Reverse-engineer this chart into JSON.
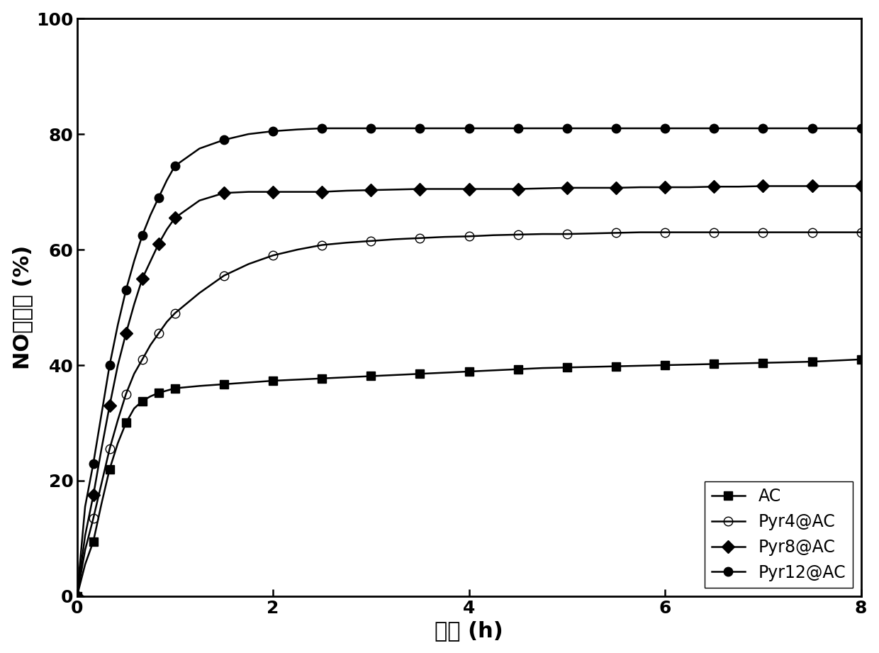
{
  "title": "",
  "xlabel": "时间 (h)",
  "ylabel": "NO转化率 (%)",
  "xlim": [
    0,
    8
  ],
  "ylim": [
    0,
    100
  ],
  "xticks": [
    0,
    2,
    4,
    6,
    8
  ],
  "yticks": [
    0,
    20,
    40,
    60,
    80,
    100
  ],
  "series": [
    {
      "label": "AC",
      "color": "#000000",
      "marker": "s",
      "marker_face": "#000000",
      "x": [
        0.0,
        0.083,
        0.167,
        0.25,
        0.333,
        0.417,
        0.5,
        0.583,
        0.667,
        0.75,
        0.833,
        0.917,
        1.0,
        1.25,
        1.5,
        1.75,
        2.0,
        2.25,
        2.5,
        2.75,
        3.0,
        3.25,
        3.5,
        3.75,
        4.0,
        4.25,
        4.5,
        4.75,
        5.0,
        5.25,
        5.5,
        5.75,
        6.0,
        6.25,
        6.5,
        6.75,
        7.0,
        7.25,
        7.5,
        7.75,
        8.0
      ],
      "y": [
        0.0,
        5.5,
        9.5,
        16.0,
        22.0,
        26.5,
        30.0,
        32.5,
        33.8,
        34.6,
        35.2,
        35.6,
        36.0,
        36.4,
        36.7,
        37.0,
        37.3,
        37.5,
        37.7,
        37.9,
        38.1,
        38.3,
        38.5,
        38.7,
        38.9,
        39.1,
        39.3,
        39.5,
        39.6,
        39.7,
        39.8,
        39.9,
        40.0,
        40.1,
        40.2,
        40.3,
        40.4,
        40.5,
        40.6,
        40.8,
        41.0
      ]
    },
    {
      "label": "Pyr4@AC",
      "color": "#000000",
      "marker": "o",
      "marker_face": "none",
      "x": [
        0.0,
        0.083,
        0.167,
        0.25,
        0.333,
        0.417,
        0.5,
        0.583,
        0.667,
        0.75,
        0.833,
        0.917,
        1.0,
        1.25,
        1.5,
        1.75,
        2.0,
        2.25,
        2.5,
        2.75,
        3.0,
        3.25,
        3.5,
        3.75,
        4.0,
        4.25,
        4.5,
        4.75,
        5.0,
        5.25,
        5.5,
        5.75,
        6.0,
        6.25,
        6.5,
        6.75,
        7.0,
        7.25,
        7.5,
        7.75,
        8.0
      ],
      "y": [
        0.0,
        8.0,
        13.5,
        19.5,
        25.5,
        30.5,
        35.0,
        38.5,
        41.0,
        43.5,
        45.5,
        47.5,
        49.0,
        52.5,
        55.5,
        57.5,
        59.0,
        60.0,
        60.8,
        61.2,
        61.5,
        61.8,
        62.0,
        62.2,
        62.3,
        62.5,
        62.6,
        62.7,
        62.7,
        62.8,
        62.9,
        63.0,
        63.0,
        63.0,
        63.0,
        63.0,
        63.0,
        63.0,
        63.0,
        63.0,
        63.0
      ]
    },
    {
      "label": "Pyr8@AC",
      "color": "#000000",
      "marker": "D",
      "marker_face": "#000000",
      "x": [
        0.0,
        0.083,
        0.167,
        0.25,
        0.333,
        0.417,
        0.5,
        0.583,
        0.667,
        0.75,
        0.833,
        0.917,
        1.0,
        1.25,
        1.5,
        1.75,
        2.0,
        2.25,
        2.5,
        2.75,
        3.0,
        3.25,
        3.5,
        3.75,
        4.0,
        4.25,
        4.5,
        4.75,
        5.0,
        5.25,
        5.5,
        5.75,
        6.0,
        6.25,
        6.5,
        6.75,
        7.0,
        7.25,
        7.5,
        7.75,
        8.0
      ],
      "y": [
        0.0,
        10.5,
        17.5,
        25.5,
        33.0,
        40.0,
        45.5,
        50.5,
        55.0,
        58.0,
        61.0,
        63.5,
        65.5,
        68.5,
        69.8,
        70.0,
        70.0,
        70.0,
        70.0,
        70.2,
        70.3,
        70.4,
        70.5,
        70.5,
        70.5,
        70.5,
        70.5,
        70.6,
        70.7,
        70.7,
        70.7,
        70.8,
        70.8,
        70.8,
        70.9,
        70.9,
        71.0,
        71.0,
        71.0,
        71.0,
        71.0
      ]
    },
    {
      "label": "Pyr12@AC",
      "color": "#000000",
      "marker": "o",
      "marker_face": "#000000",
      "x": [
        0.0,
        0.083,
        0.167,
        0.25,
        0.333,
        0.417,
        0.5,
        0.583,
        0.667,
        0.75,
        0.833,
        0.917,
        1.0,
        1.25,
        1.5,
        1.75,
        2.0,
        2.25,
        2.5,
        2.75,
        3.0,
        3.25,
        3.5,
        3.75,
        4.0,
        4.25,
        4.5,
        4.75,
        5.0,
        5.25,
        5.5,
        5.75,
        6.0,
        6.25,
        6.5,
        6.75,
        7.0,
        7.25,
        7.5,
        7.75,
        8.0
      ],
      "y": [
        0.0,
        15.5,
        23.0,
        31.5,
        40.0,
        47.0,
        53.0,
        58.0,
        62.5,
        66.0,
        69.0,
        72.0,
        74.5,
        77.5,
        79.0,
        80.0,
        80.5,
        80.8,
        81.0,
        81.0,
        81.0,
        81.0,
        81.0,
        81.0,
        81.0,
        81.0,
        81.0,
        81.0,
        81.0,
        81.0,
        81.0,
        81.0,
        81.0,
        81.0,
        81.0,
        81.0,
        81.0,
        81.0,
        81.0,
        81.0,
        81.0
      ]
    }
  ],
  "legend_loc": "lower right",
  "background_color": "#ffffff",
  "spine_color": "#000000",
  "tick_fontsize": 18,
  "label_fontsize": 22,
  "legend_fontsize": 17,
  "linewidth": 1.8,
  "markersize": 9,
  "markevery": 2
}
